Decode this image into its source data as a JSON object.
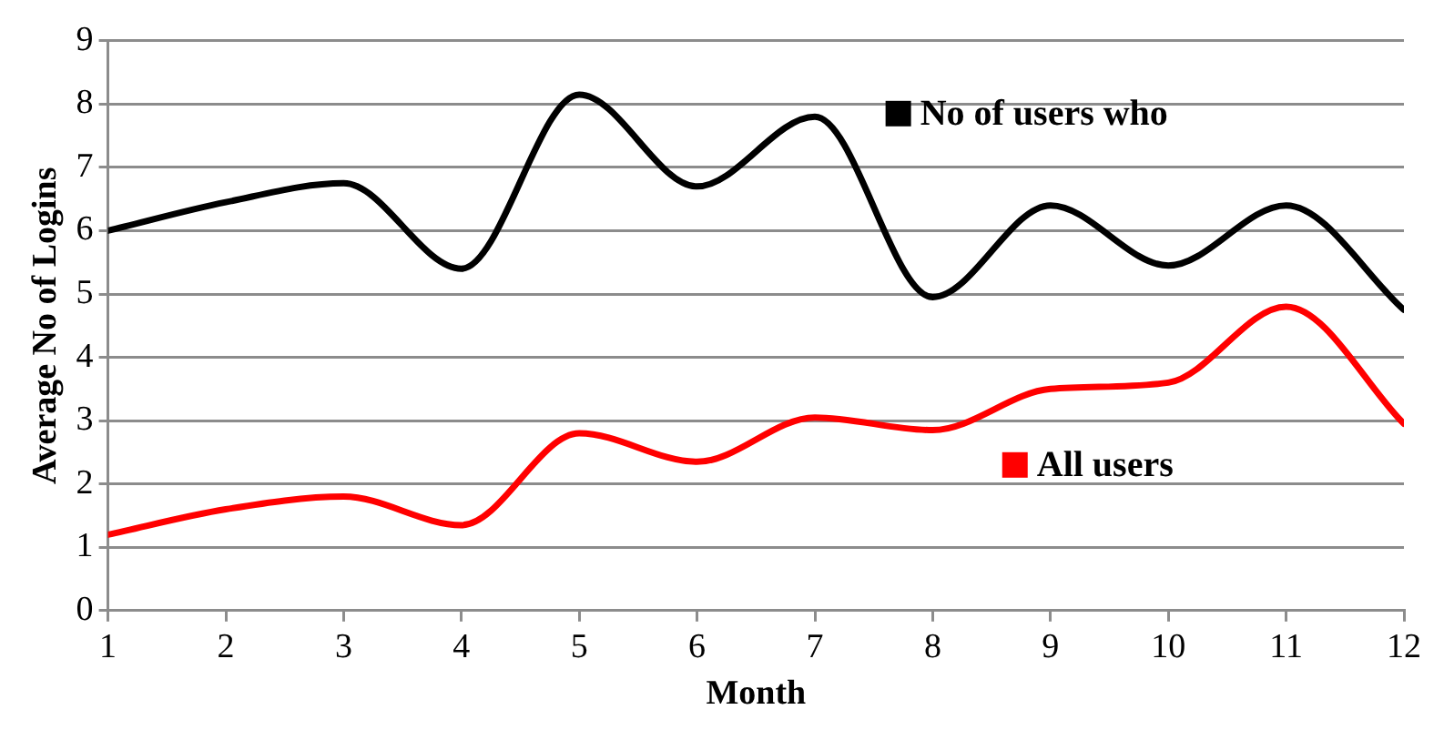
{
  "chart_data": {
    "type": "line",
    "xlabel": "Month",
    "ylabel": "Average No of Logins",
    "x": [
      1,
      2,
      3,
      4,
      5,
      6,
      7,
      8,
      9,
      10,
      11,
      12
    ],
    "xlim": [
      1,
      12
    ],
    "xticks": [
      1,
      2,
      3,
      4,
      5,
      6,
      7,
      8,
      9,
      10,
      11,
      12
    ],
    "ylim": [
      0,
      9
    ],
    "yticks": [
      0,
      1,
      2,
      3,
      4,
      5,
      6,
      7,
      8,
      9
    ],
    "grid": "y",
    "legend": "right",
    "marker": "none",
    "line_style": "solid",
    "series": [
      {
        "name": "No of users who",
        "color": "#000000",
        "values": [
          6.0,
          6.45,
          6.75,
          5.4,
          8.15,
          6.7,
          7.8,
          4.95,
          6.4,
          5.45,
          6.4,
          4.75
        ]
      },
      {
        "name": "All users",
        "color": "#ff0000",
        "values": [
          1.2,
          1.6,
          1.8,
          1.35,
          2.8,
          2.35,
          3.05,
          2.85,
          3.5,
          3.6,
          4.8,
          2.95
        ]
      }
    ]
  }
}
